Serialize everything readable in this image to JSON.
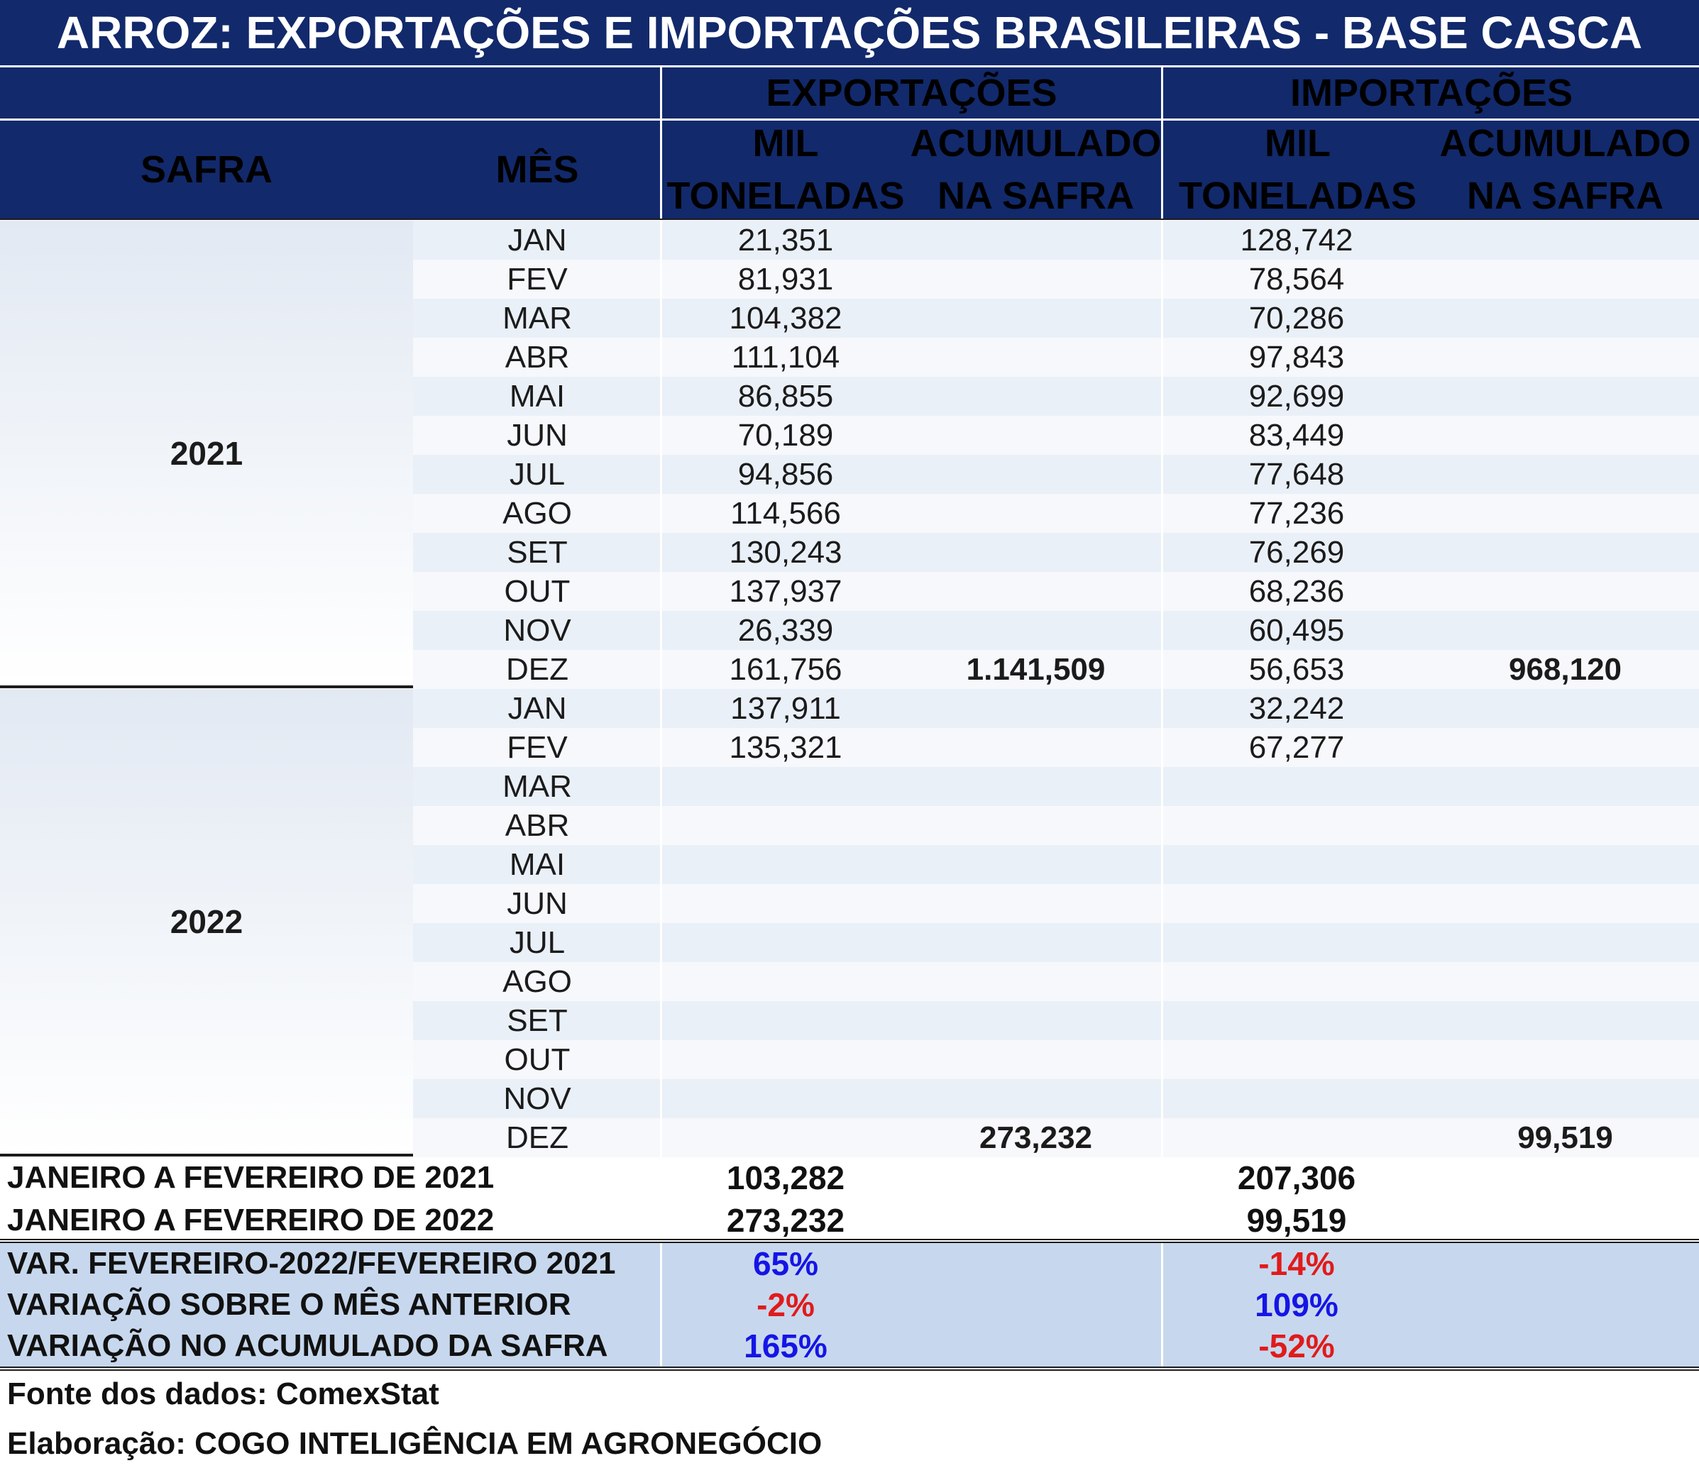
{
  "title": "ARROZ: EXPORTAÇÕES E IMPORTAÇÕES BRASILEIRAS - BASE CASCA",
  "headers": {
    "exports": "EXPORTAÇÕES",
    "imports": "IMPORTAÇÕES",
    "safra": "SAFRA",
    "month": "MÊS",
    "mil_line1": "MIL",
    "mil_line2": "TONELADAS",
    "acc_line1": "ACUMULADO",
    "acc_line2": "NA SAFRA"
  },
  "safras": [
    {
      "year": "2021",
      "rows": [
        {
          "month": "JAN",
          "exp": "21,351",
          "exp_acc": "",
          "imp": "128,742",
          "imp_acc": ""
        },
        {
          "month": "FEV",
          "exp": "81,931",
          "exp_acc": "",
          "imp": "78,564",
          "imp_acc": ""
        },
        {
          "month": "MAR",
          "exp": "104,382",
          "exp_acc": "",
          "imp": "70,286",
          "imp_acc": ""
        },
        {
          "month": "ABR",
          "exp": "111,104",
          "exp_acc": "",
          "imp": "97,843",
          "imp_acc": ""
        },
        {
          "month": "MAI",
          "exp": "86,855",
          "exp_acc": "",
          "imp": "92,699",
          "imp_acc": ""
        },
        {
          "month": "JUN",
          "exp": "70,189",
          "exp_acc": "",
          "imp": "83,449",
          "imp_acc": ""
        },
        {
          "month": "JUL",
          "exp": "94,856",
          "exp_acc": "",
          "imp": "77,648",
          "imp_acc": ""
        },
        {
          "month": "AGO",
          "exp": "114,566",
          "exp_acc": "",
          "imp": "77,236",
          "imp_acc": ""
        },
        {
          "month": "SET",
          "exp": "130,243",
          "exp_acc": "",
          "imp": "76,269",
          "imp_acc": ""
        },
        {
          "month": "OUT",
          "exp": "137,937",
          "exp_acc": "",
          "imp": "68,236",
          "imp_acc": ""
        },
        {
          "month": "NOV",
          "exp": "26,339",
          "exp_acc": "",
          "imp": "60,495",
          "imp_acc": ""
        },
        {
          "month": "DEZ",
          "exp": "161,756",
          "exp_acc": "1.141,509",
          "imp": "56,653",
          "imp_acc": "968,120"
        }
      ]
    },
    {
      "year": "2022",
      "rows": [
        {
          "month": "JAN",
          "exp": "137,911",
          "exp_acc": "",
          "imp": "32,242",
          "imp_acc": ""
        },
        {
          "month": "FEV",
          "exp": "135,321",
          "exp_acc": "",
          "imp": "67,277",
          "imp_acc": ""
        },
        {
          "month": "MAR",
          "exp": "",
          "exp_acc": "",
          "imp": "",
          "imp_acc": ""
        },
        {
          "month": "ABR",
          "exp": "",
          "exp_acc": "",
          "imp": "",
          "imp_acc": ""
        },
        {
          "month": "MAI",
          "exp": "",
          "exp_acc": "",
          "imp": "",
          "imp_acc": ""
        },
        {
          "month": "JUN",
          "exp": "",
          "exp_acc": "",
          "imp": "",
          "imp_acc": ""
        },
        {
          "month": "JUL",
          "exp": "",
          "exp_acc": "",
          "imp": "",
          "imp_acc": ""
        },
        {
          "month": "AGO",
          "exp": "",
          "exp_acc": "",
          "imp": "",
          "imp_acc": ""
        },
        {
          "month": "SET",
          "exp": "",
          "exp_acc": "",
          "imp": "",
          "imp_acc": ""
        },
        {
          "month": "OUT",
          "exp": "",
          "exp_acc": "",
          "imp": "",
          "imp_acc": ""
        },
        {
          "month": "NOV",
          "exp": "",
          "exp_acc": "",
          "imp": "",
          "imp_acc": ""
        },
        {
          "month": "DEZ",
          "exp": "",
          "exp_acc": "273,232",
          "imp": "",
          "imp_acc": "99,519"
        }
      ]
    }
  ],
  "summary": [
    {
      "label": "JANEIRO A FEVEREIRO DE 2021",
      "exp": "103,282",
      "imp": "207,306"
    },
    {
      "label": "JANEIRO A FEVEREIRO DE 2022",
      "exp": "273,232",
      "imp": "99,519"
    }
  ],
  "variations": [
    {
      "label": "VAR. FEVEREIRO-2022/FEVEREIRO 2021",
      "exp": "65%",
      "exp_color": "#1515e6",
      "imp": "-14%",
      "imp_color": "#e01b1b"
    },
    {
      "label": "VARIAÇÃO SOBRE O MÊS ANTERIOR",
      "exp": "-2%",
      "exp_color": "#e01b1b",
      "imp": "109%",
      "imp_color": "#1515e6"
    },
    {
      "label": "VARIAÇÃO NO ACUMULADO DA SAFRA",
      "exp": "165%",
      "exp_color": "#1515e6",
      "imp": "-52%",
      "imp_color": "#e01b1b"
    }
  ],
  "footer": {
    "source": "Fonte dos dados: ComexStat",
    "author": "Elaboração: COGO INTELIGÊNCIA EM AGRONEGÓCIO"
  }
}
